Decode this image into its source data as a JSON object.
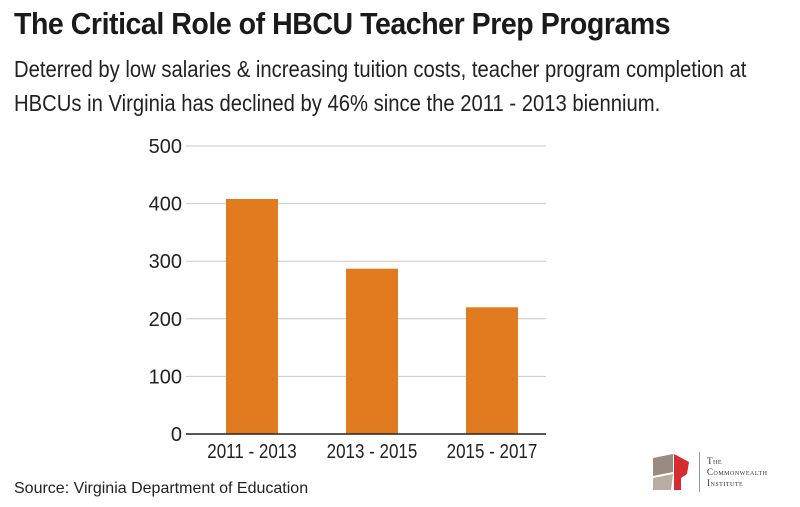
{
  "header": {
    "title": "The Critical Role of HBCU Teacher Prep Programs",
    "subtitle": "Deterred by low salaries & increasing tuition costs, teacher program completion at HBCUs in Virginia has declined by 46% since the 2011 - 2013 biennium."
  },
  "chart_data": {
    "type": "bar",
    "categories": [
      "2011 - 2013",
      "2013 - 2015",
      "2015 - 2017"
    ],
    "values": [
      408,
      287,
      220
    ],
    "ylim": [
      0,
      500
    ],
    "yticks": [
      0,
      100,
      200,
      300,
      400,
      500
    ],
    "grid": true,
    "bar_color": "#e07b1f",
    "xlabel": "",
    "ylabel": ""
  },
  "footer": {
    "source": "Source: Virginia Department of Education"
  },
  "logo": {
    "line1": "The",
    "line2": "Commonwealth",
    "line3": "Institute",
    "colors": {
      "red": "#d62b30",
      "gray": "#9a8b82"
    }
  }
}
